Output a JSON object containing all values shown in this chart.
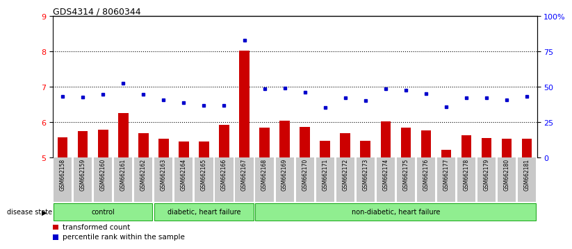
{
  "title": "GDS4314 / 8060344",
  "samples": [
    "GSM662158",
    "GSM662159",
    "GSM662160",
    "GSM662161",
    "GSM662162",
    "GSM662163",
    "GSM662164",
    "GSM662165",
    "GSM662166",
    "GSM662167",
    "GSM662168",
    "GSM662169",
    "GSM662170",
    "GSM662171",
    "GSM662172",
    "GSM662173",
    "GSM662174",
    "GSM662175",
    "GSM662176",
    "GSM662177",
    "GSM662178",
    "GSM662179",
    "GSM662180",
    "GSM662181"
  ],
  "bar_values": [
    5.57,
    5.75,
    5.78,
    6.25,
    5.68,
    5.52,
    5.44,
    5.45,
    5.92,
    8.02,
    5.85,
    6.04,
    5.86,
    5.46,
    5.68,
    5.46,
    6.02,
    5.85,
    5.76,
    5.22,
    5.63,
    5.55,
    5.53,
    5.53
  ],
  "dot_values": [
    6.72,
    6.7,
    6.78,
    7.1,
    6.78,
    6.62,
    6.55,
    6.48,
    6.48,
    8.32,
    6.95,
    6.97,
    6.85,
    6.42,
    6.68,
    6.6,
    6.95,
    6.9,
    6.8,
    6.44,
    6.68,
    6.68,
    6.62,
    6.72
  ],
  "ylim": [
    5,
    9
  ],
  "yticks_left": [
    5,
    6,
    7,
    8,
    9
  ],
  "right_tick_labels": [
    "0",
    "25",
    "50",
    "75",
    "100%"
  ],
  "group_starts": [
    0,
    5,
    10
  ],
  "group_ends": [
    4,
    9,
    23
  ],
  "group_labels": [
    "control",
    "diabetic, heart failure",
    "non-diabetic, heart failure"
  ],
  "bar_color": "#cc0000",
  "dot_color": "#0000cc",
  "bg_color": "#c8c8c8",
  "group_color": "#90ee90",
  "group_border_color": "#22aa22",
  "legend_bar_label": "transformed count",
  "legend_dot_label": "percentile rank within the sample",
  "disease_state_label": "disease state",
  "grid_lines": [
    6,
    7,
    8
  ],
  "top_border_color": "#000000"
}
